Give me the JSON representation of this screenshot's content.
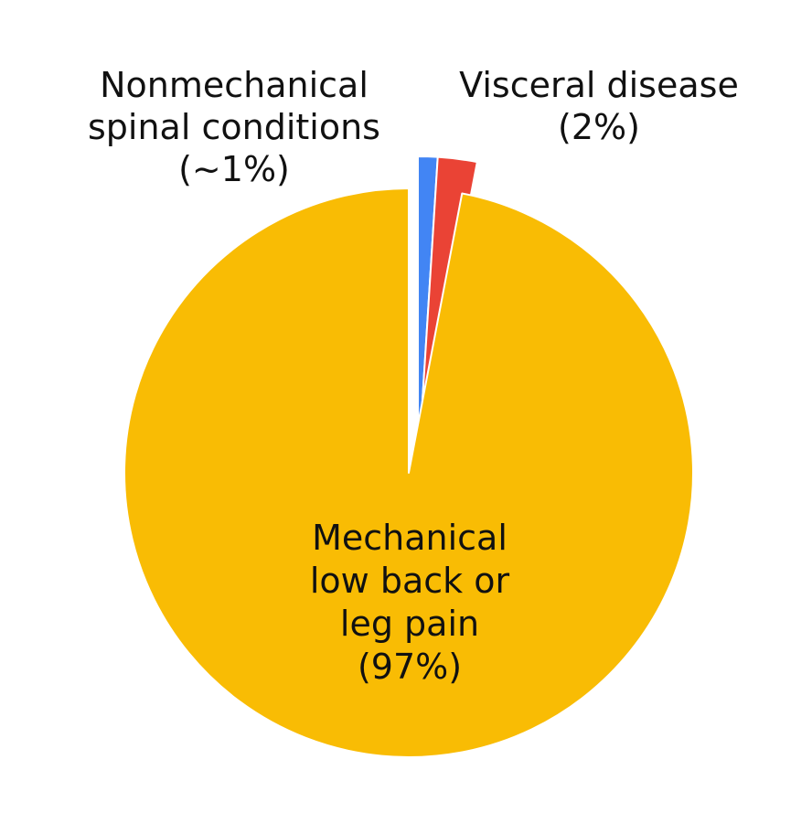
{
  "chart_data": {
    "type": "pie",
    "start_angle_deg": 0,
    "direction": "clockwise",
    "slices": [
      {
        "name": "nonmechanical",
        "value": 1,
        "color": "#4285F4",
        "label_lines": [
          "Nonmechanical",
          "spinal conditions",
          "(~1%)"
        ]
      },
      {
        "name": "visceral",
        "value": 2,
        "color": "#EA4335",
        "label_lines": [
          "Visceral disease",
          "(2%)"
        ]
      },
      {
        "name": "mechanical",
        "value": 97,
        "color": "#F9BC04",
        "label_lines": [
          "Mechanical",
          "low back or",
          "leg pain",
          "(97%)"
        ]
      }
    ]
  }
}
